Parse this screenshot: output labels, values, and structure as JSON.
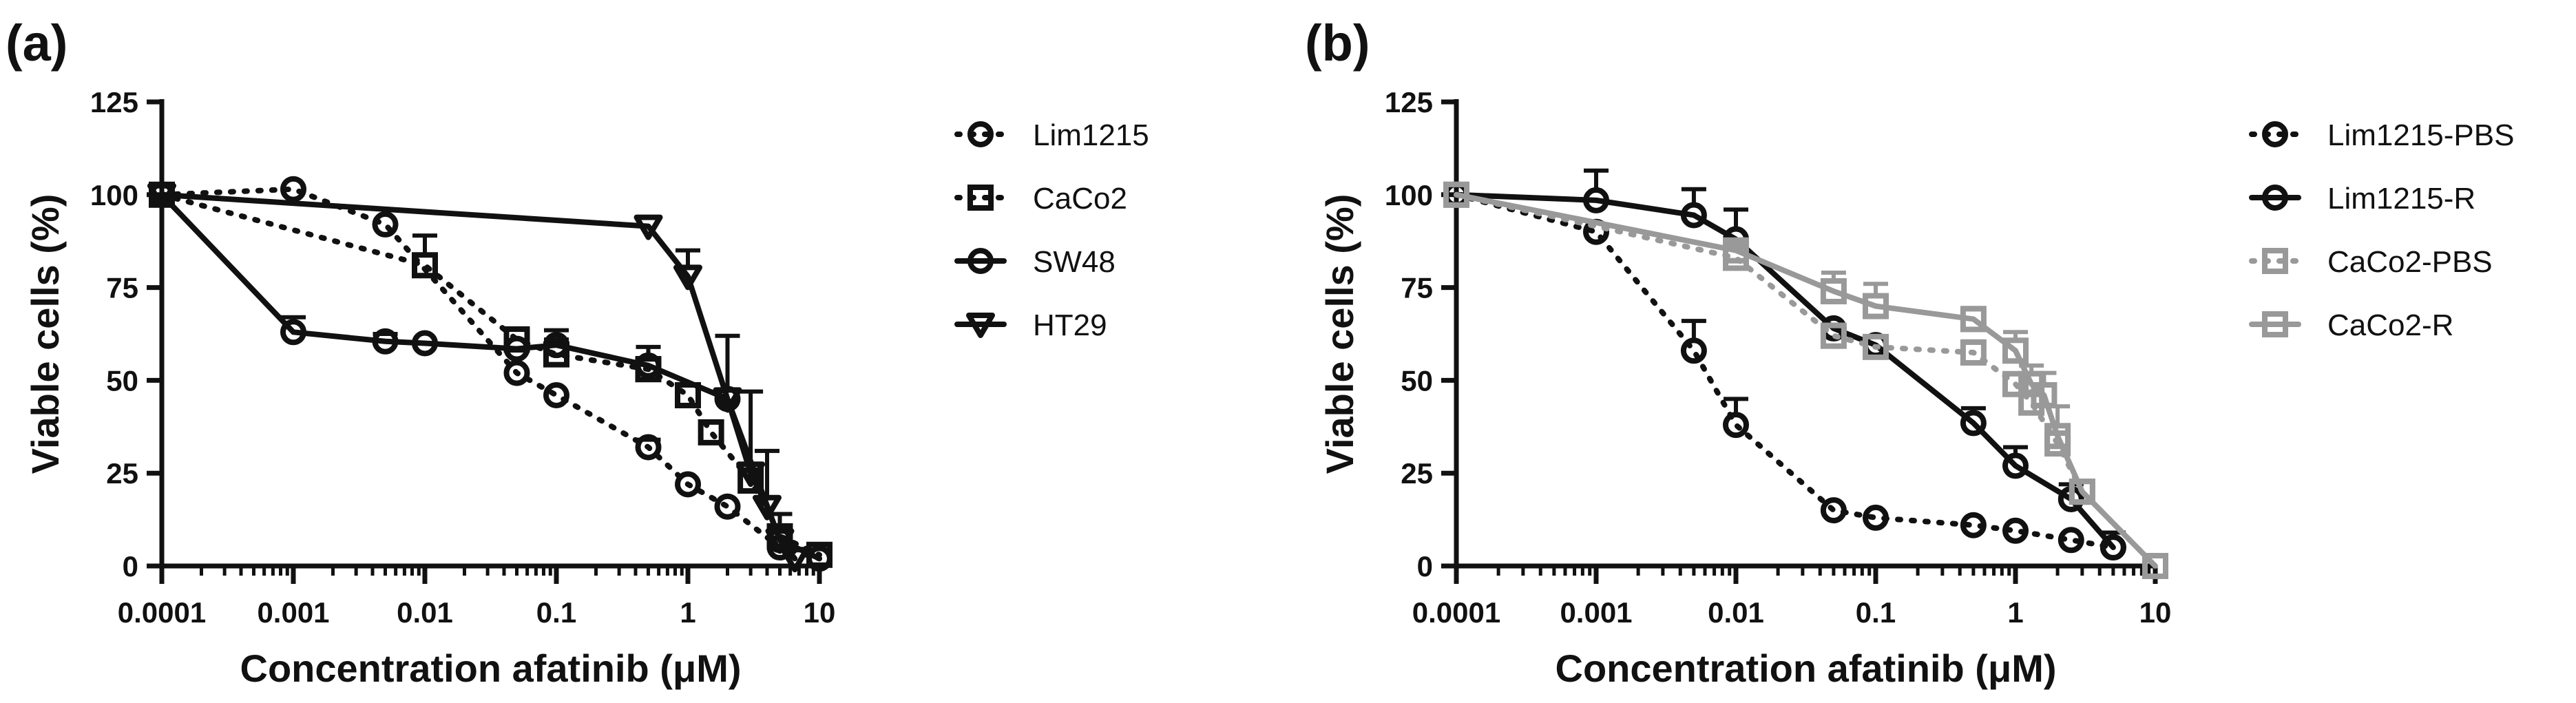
{
  "chart_data": [
    {
      "panel": "(a)",
      "type": "line",
      "xlabel": "Concentration afatinib (μM)",
      "ylabel": "Viable cells (%)",
      "xscale": "log",
      "xlim": [
        0.0001,
        10
      ],
      "ylim": [
        0,
        125
      ],
      "xticks": [
        "0.0001",
        "0.001",
        "0.01",
        "0.1",
        "1",
        "10"
      ],
      "yticks": [
        "0",
        "25",
        "50",
        "75",
        "100",
        "125"
      ],
      "legend_position": "right",
      "series": [
        {
          "name": "Lim1215",
          "marker": "circle",
          "dash": "dotted",
          "color": "#111111",
          "points": [
            {
              "x": 0.0001,
              "y": 100,
              "err": 0
            },
            {
              "x": 0.001,
              "y": 101.5,
              "err": 0
            },
            {
              "x": 0.005,
              "y": 92,
              "err": 0
            },
            {
              "x": 0.05,
              "y": 52,
              "err": 0
            },
            {
              "x": 0.1,
              "y": 46,
              "err": 0
            },
            {
              "x": 0.5,
              "y": 32,
              "err": 2
            },
            {
              "x": 1,
              "y": 22,
              "err": 0
            },
            {
              "x": 2,
              "y": 16,
              "err": 0
            },
            {
              "x": 5,
              "y": 5,
              "err": 0
            },
            {
              "x": 10,
              "y": 2,
              "err": 0
            }
          ]
        },
        {
          "name": "CaCo2",
          "marker": "square",
          "dash": "dotted",
          "color": "#111111",
          "points": [
            {
              "x": 0.0001,
              "y": 100,
              "err": 0
            },
            {
              "x": 0.01,
              "y": 81,
              "err": 8
            },
            {
              "x": 0.05,
              "y": 61,
              "err": 3
            },
            {
              "x": 0.1,
              "y": 57,
              "err": 4
            },
            {
              "x": 0.5,
              "y": 53,
              "err": 3
            },
            {
              "x": 1,
              "y": 46,
              "err": 0
            },
            {
              "x": 1.5,
              "y": 36,
              "err": 0
            },
            {
              "x": 3,
              "y": 23,
              "err": 0
            },
            {
              "x": 5,
              "y": 8,
              "err": 6
            },
            {
              "x": 10,
              "y": 3,
              "err": 0
            }
          ]
        },
        {
          "name": "SW48",
          "marker": "circle",
          "dash": "solid",
          "color": "#111111",
          "points": [
            {
              "x": 0.0001,
              "y": 100,
              "err": 0
            },
            {
              "x": 0.001,
              "y": 63,
              "err": 4
            },
            {
              "x": 0.005,
              "y": 60.5,
              "err": 2
            },
            {
              "x": 0.01,
              "y": 60,
              "err": 0
            },
            {
              "x": 0.05,
              "y": 58.5,
              "err": 0
            },
            {
              "x": 0.1,
              "y": 59.5,
              "err": 4
            },
            {
              "x": 0.5,
              "y": 54,
              "err": 5
            },
            {
              "x": 2,
              "y": 45,
              "err": 0
            },
            {
              "x": 5,
              "y": 7,
              "err": 0
            },
            {
              "x": 10,
              "y": 2,
              "err": 0
            }
          ]
        },
        {
          "name": "HT29",
          "marker": "triangle-down",
          "dash": "solid",
          "color": "#111111",
          "points": [
            {
              "x": 0.0001,
              "y": 100,
              "err": 0
            },
            {
              "x": 0.5,
              "y": 91.5,
              "err": 0
            },
            {
              "x": 1,
              "y": 78,
              "err": 7
            },
            {
              "x": 2,
              "y": 45,
              "err": 17
            },
            {
              "x": 3,
              "y": 25,
              "err": 22
            },
            {
              "x": 4,
              "y": 16,
              "err": 15
            },
            {
              "x": 5,
              "y": 7,
              "err": 0
            },
            {
              "x": 6.5,
              "y": 2,
              "err": 0
            }
          ]
        }
      ]
    },
    {
      "panel": "(b)",
      "type": "line",
      "xlabel": "Concentration afatinib (μM)",
      "ylabel": "Viable cells (%)",
      "xscale": "log",
      "xlim": [
        0.0001,
        10
      ],
      "ylim": [
        0,
        125
      ],
      "xticks": [
        "0.0001",
        "0.001",
        "0.01",
        "0.1",
        "1",
        "10"
      ],
      "yticks": [
        "0",
        "25",
        "50",
        "75",
        "100",
        "125"
      ],
      "legend_position": "right",
      "series": [
        {
          "name": "Lim1215-PBS",
          "marker": "circle",
          "dash": "dotted",
          "color": "#111111",
          "points": [
            {
              "x": 0.0001,
              "y": 100,
              "err": 0
            },
            {
              "x": 0.001,
              "y": 90,
              "err": 0
            },
            {
              "x": 0.005,
              "y": 58,
              "err": 8
            },
            {
              "x": 0.01,
              "y": 38,
              "err": 7
            },
            {
              "x": 0.05,
              "y": 15,
              "err": 0
            },
            {
              "x": 0.1,
              "y": 13,
              "err": 0
            },
            {
              "x": 0.5,
              "y": 11,
              "err": 0
            },
            {
              "x": 1,
              "y": 9.5,
              "err": 0
            },
            {
              "x": 2.5,
              "y": 7,
              "err": 0
            },
            {
              "x": 5,
              "y": 5,
              "err": 0
            }
          ]
        },
        {
          "name": "Lim1215-R",
          "marker": "circle",
          "dash": "solid",
          "color": "#111111",
          "points": [
            {
              "x": 0.0001,
              "y": 100,
              "err": 0
            },
            {
              "x": 0.001,
              "y": 98.5,
              "err": 8
            },
            {
              "x": 0.005,
              "y": 94.5,
              "err": 7
            },
            {
              "x": 0.01,
              "y": 88,
              "err": 8
            },
            {
              "x": 0.05,
              "y": 64,
              "err": 0
            },
            {
              "x": 0.1,
              "y": 59.5,
              "err": 0
            },
            {
              "x": 0.5,
              "y": 38.5,
              "err": 4
            },
            {
              "x": 1,
              "y": 27,
              "err": 5
            },
            {
              "x": 2.5,
              "y": 18,
              "err": 4
            },
            {
              "x": 5,
              "y": 5,
              "err": 4
            }
          ]
        },
        {
          "name": "CaCo2-PBS",
          "marker": "square",
          "dash": "dotted",
          "color": "#999999",
          "points": [
            {
              "x": 0.0001,
              "y": 100,
              "err": 0
            },
            {
              "x": 0.01,
              "y": 83,
              "err": 4
            },
            {
              "x": 0.05,
              "y": 62,
              "err": 3
            },
            {
              "x": 0.1,
              "y": 59,
              "err": 0
            },
            {
              "x": 0.5,
              "y": 57.5,
              "err": 3
            },
            {
              "x": 1,
              "y": 49,
              "err": 0
            },
            {
              "x": 1.3,
              "y": 44,
              "err": 0
            },
            {
              "x": 2,
              "y": 33,
              "err": 0
            },
            {
              "x": 3,
              "y": 20,
              "err": 0
            },
            {
              "x": 10,
              "y": 0,
              "err": 0
            }
          ]
        },
        {
          "name": "CaCo2-R",
          "marker": "square",
          "dash": "solid",
          "color": "#999999",
          "points": [
            {
              "x": 0.0001,
              "y": 100,
              "err": 0
            },
            {
              "x": 0.01,
              "y": 85,
              "err": 0
            },
            {
              "x": 0.05,
              "y": 74,
              "err": 5
            },
            {
              "x": 0.1,
              "y": 70,
              "err": 6
            },
            {
              "x": 0.5,
              "y": 66.5,
              "err": 3
            },
            {
              "x": 1,
              "y": 58,
              "err": 5
            },
            {
              "x": 1.3,
              "y": 49,
              "err": 5
            },
            {
              "x": 1.6,
              "y": 46,
              "err": 6
            },
            {
              "x": 2,
              "y": 35,
              "err": 8
            },
            {
              "x": 3,
              "y": 20,
              "err": 0
            },
            {
              "x": 10,
              "y": 0,
              "err": 0
            }
          ]
        }
      ]
    }
  ]
}
